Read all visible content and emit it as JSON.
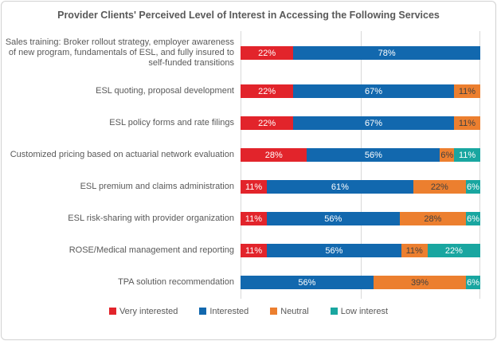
{
  "chart_data": {
    "type": "bar",
    "orientation": "horizontal",
    "stacked": true,
    "title": "Provider Clients' Perceived Level of Interest in Accessing  the Following Services",
    "categories": [
      "Sales training: Broker rollout strategy, employer awareness of new program, fundamentals of ESL, and fully insured to self-funded transitions",
      "ESL quoting, proposal development",
      "ESL policy forms and rate filings",
      "Customized pricing based on actuarial network evaluation",
      "ESL premium and claims administration",
      "ESL risk-sharing with provider organization",
      "ROSE/Medical management and reporting",
      "TPA solution recommendation"
    ],
    "series": [
      {
        "name": "Very interested",
        "color": "#E2242B",
        "label_color": "#FFFFFF",
        "values": [
          22,
          22,
          22,
          28,
          11,
          11,
          11,
          0
        ]
      },
      {
        "name": "Interested",
        "color": "#1268AE",
        "label_color": "#FFFFFF",
        "values": [
          78,
          67,
          67,
          56,
          61,
          56,
          56,
          56
        ]
      },
      {
        "name": "Neutral",
        "color": "#EC7F2F",
        "label_color": "#404040",
        "values": [
          0,
          11,
          11,
          6,
          22,
          28,
          11,
          39
        ]
      },
      {
        "name": "Low interest",
        "color": "#19A6A0",
        "label_color": "#FFFFFF",
        "values": [
          0,
          0,
          0,
          11,
          6,
          6,
          22,
          6
        ]
      }
    ],
    "value_suffix": "%",
    "xlim": [
      0,
      100
    ],
    "gridlines_percent": [
      0,
      50,
      100
    ],
    "grid_color": "#D9D9D9",
    "legend_position": "bottom",
    "legend": [
      "Very interested",
      "Interested",
      "Neutral",
      "Low interest"
    ]
  }
}
